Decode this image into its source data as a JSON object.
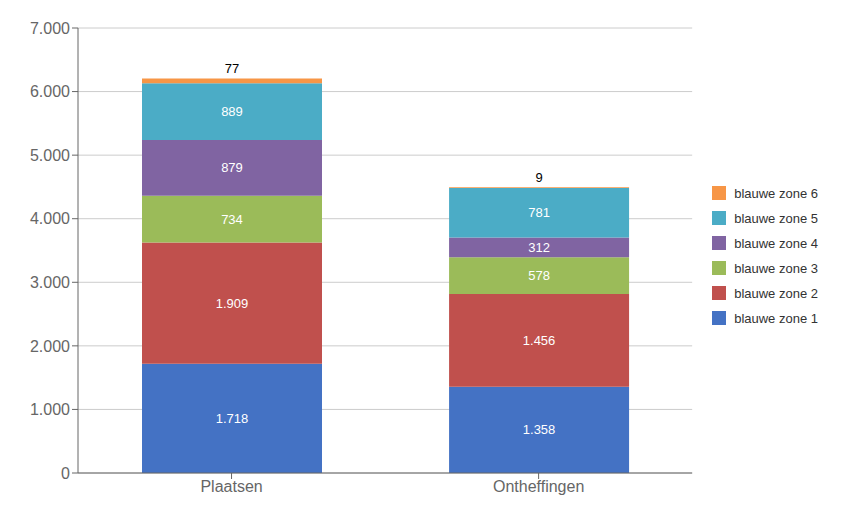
{
  "chart_data": {
    "type": "bar",
    "stacked": true,
    "categories": [
      "Plaatsen",
      "Ontheffingen"
    ],
    "series": [
      {
        "name": "blauwe zone 1",
        "color": "#4472C4",
        "values": [
          1718,
          1358
        ],
        "value_labels": [
          "1.718",
          "1.358"
        ]
      },
      {
        "name": "blauwe zone 2",
        "color": "#C0504D",
        "values": [
          1909,
          1456
        ],
        "value_labels": [
          "1.909",
          "1.456"
        ]
      },
      {
        "name": "blauwe zone 3",
        "color": "#9BBB59",
        "values": [
          734,
          578
        ]
      },
      {
        "name": "blauwe zone 4",
        "color": "#8064A2",
        "values": [
          879,
          312
        ]
      },
      {
        "name": "blauwe zone 5",
        "color": "#4BACC6",
        "values": [
          889,
          781
        ]
      },
      {
        "name": "blauwe zone 6",
        "color": "#F79646",
        "values": [
          77,
          9
        ]
      }
    ],
    "ylim": [
      0,
      7000
    ],
    "yticks": [
      0,
      {
        "value": 1000,
        "label": "1.000"
      },
      {
        "value": 2000,
        "label": "2.000"
      },
      {
        "value": 3000,
        "label": "3.000"
      },
      {
        "value": 4000,
        "label": "4.000"
      },
      {
        "value": 5000,
        "label": "5.000"
      },
      {
        "value": 6000,
        "label": "6.000"
      },
      {
        "value": 7000,
        "label": "7.000"
      }
    ],
    "grid": true,
    "legend": "right",
    "data_labels": true
  }
}
